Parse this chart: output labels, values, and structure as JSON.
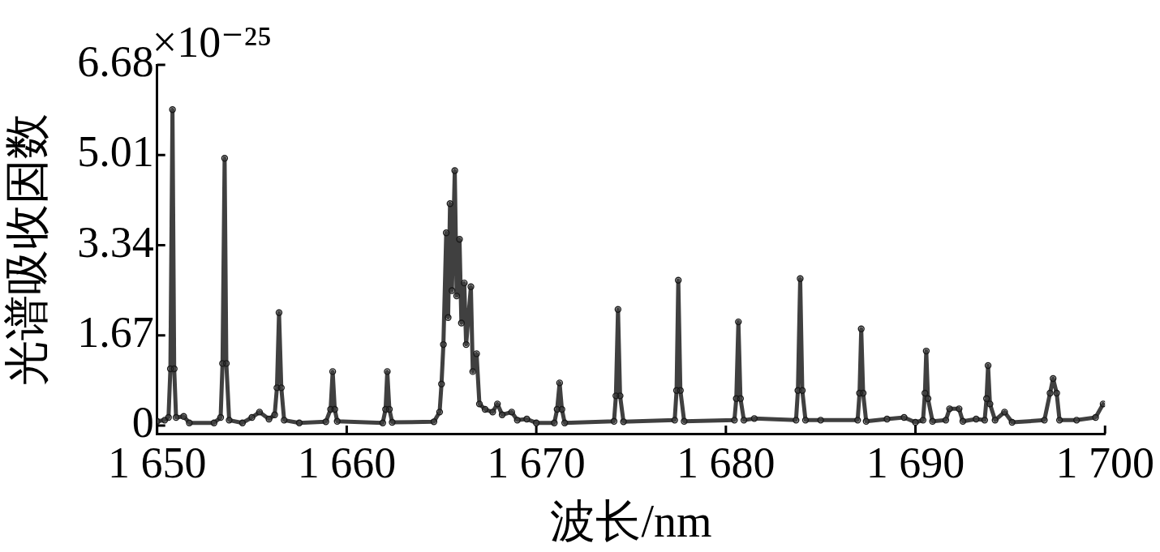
{
  "chart_data": {
    "type": "line",
    "xlabel": "波长/nm",
    "ylabel": "光谱吸收因数",
    "annotations": [
      "×10⁻²⁵"
    ],
    "x": [
      1650.0,
      1650.4,
      1650.6,
      1650.7,
      1650.81,
      1650.9,
      1651.0,
      1651.4,
      1651.7,
      1653.0,
      1653.35,
      1653.45,
      1653.56,
      1653.65,
      1653.8,
      1654.5,
      1655.0,
      1655.4,
      1655.9,
      1656.2,
      1656.32,
      1656.43,
      1656.55,
      1656.7,
      1657.5,
      1658.9,
      1659.15,
      1659.26,
      1659.37,
      1659.5,
      1661.9,
      1662.05,
      1662.14,
      1662.25,
      1662.4,
      1664.6,
      1664.9,
      1665.0,
      1665.1,
      1665.25,
      1665.35,
      1665.45,
      1665.55,
      1665.7,
      1665.8,
      1665.95,
      1666.05,
      1666.2,
      1666.3,
      1666.55,
      1666.65,
      1666.85,
      1667.0,
      1667.3,
      1667.7,
      1667.95,
      1668.2,
      1668.7,
      1669.0,
      1669.5,
      1670.0,
      1670.95,
      1671.1,
      1671.23,
      1671.35,
      1671.5,
      1674.1,
      1674.2,
      1674.31,
      1674.42,
      1674.6,
      1677.3,
      1677.4,
      1677.49,
      1677.6,
      1677.8,
      1680.45,
      1680.55,
      1680.66,
      1680.77,
      1680.95,
      1681.5,
      1683.7,
      1683.8,
      1683.92,
      1684.03,
      1684.2,
      1685.0,
      1686.95,
      1687.05,
      1687.14,
      1687.24,
      1687.4,
      1688.5,
      1689.4,
      1690.0,
      1690.4,
      1690.5,
      1690.57,
      1690.66,
      1690.9,
      1691.6,
      1691.8,
      1692.3,
      1692.5,
      1693.2,
      1693.65,
      1693.75,
      1693.83,
      1693.93,
      1694.2,
      1694.7,
      1695.1,
      1696.8,
      1697.1,
      1697.26,
      1697.45,
      1697.6,
      1698.5,
      1699.5,
      1699.9
    ],
    "values": [
      0.08,
      0.1,
      0.15,
      1.05,
      5.85,
      1.05,
      0.15,
      0.17,
      0.05,
      0.05,
      0.15,
      1.15,
      4.95,
      1.15,
      0.1,
      0.05,
      0.15,
      0.25,
      0.12,
      0.2,
      0.7,
      2.09,
      0.7,
      0.1,
      0.05,
      0.07,
      0.3,
      1.0,
      0.3,
      0.08,
      0.05,
      0.3,
      1.0,
      0.3,
      0.06,
      0.07,
      0.25,
      0.77,
      1.5,
      3.57,
      2.0,
      4.11,
      2.5,
      4.72,
      2.4,
      3.45,
      1.9,
      2.64,
      1.5,
      2.57,
      1.0,
      1.33,
      0.4,
      0.3,
      0.25,
      0.4,
      0.2,
      0.25,
      0.1,
      0.12,
      0.05,
      0.05,
      0.3,
      0.79,
      0.3,
      0.05,
      0.08,
      0.55,
      2.15,
      0.55,
      0.07,
      0.1,
      0.65,
      2.69,
      0.65,
      0.08,
      0.1,
      0.5,
      1.92,
      0.5,
      0.1,
      0.13,
      0.1,
      0.65,
      2.72,
      0.65,
      0.1,
      0.1,
      0.1,
      0.6,
      1.79,
      0.6,
      0.08,
      0.12,
      0.15,
      0.06,
      0.1,
      0.6,
      1.38,
      0.5,
      0.08,
      0.1,
      0.31,
      0.31,
      0.08,
      0.12,
      0.1,
      0.5,
      1.11,
      0.4,
      0.1,
      0.25,
      0.06,
      0.1,
      0.6,
      0.87,
      0.6,
      0.1,
      0.1,
      0.15,
      0.4
    ],
    "color": "#404040",
    "xlim": [
      1650,
      1700
    ],
    "xticks": [
      {
        "value": 1650,
        "label": "1 650"
      },
      {
        "value": 1660,
        "label": "1 660"
      },
      {
        "value": 1670,
        "label": "1 670"
      },
      {
        "value": 1680,
        "label": "1 680"
      },
      {
        "value": 1690,
        "label": "1 690"
      },
      {
        "value": 1700,
        "label": "1 700"
      }
    ],
    "ylim": [
      -0.15,
      6.68
    ],
    "yticks": [
      0,
      1.67,
      3.34,
      5.01,
      6.68
    ],
    "marker": "circle",
    "line_style": "solid"
  }
}
